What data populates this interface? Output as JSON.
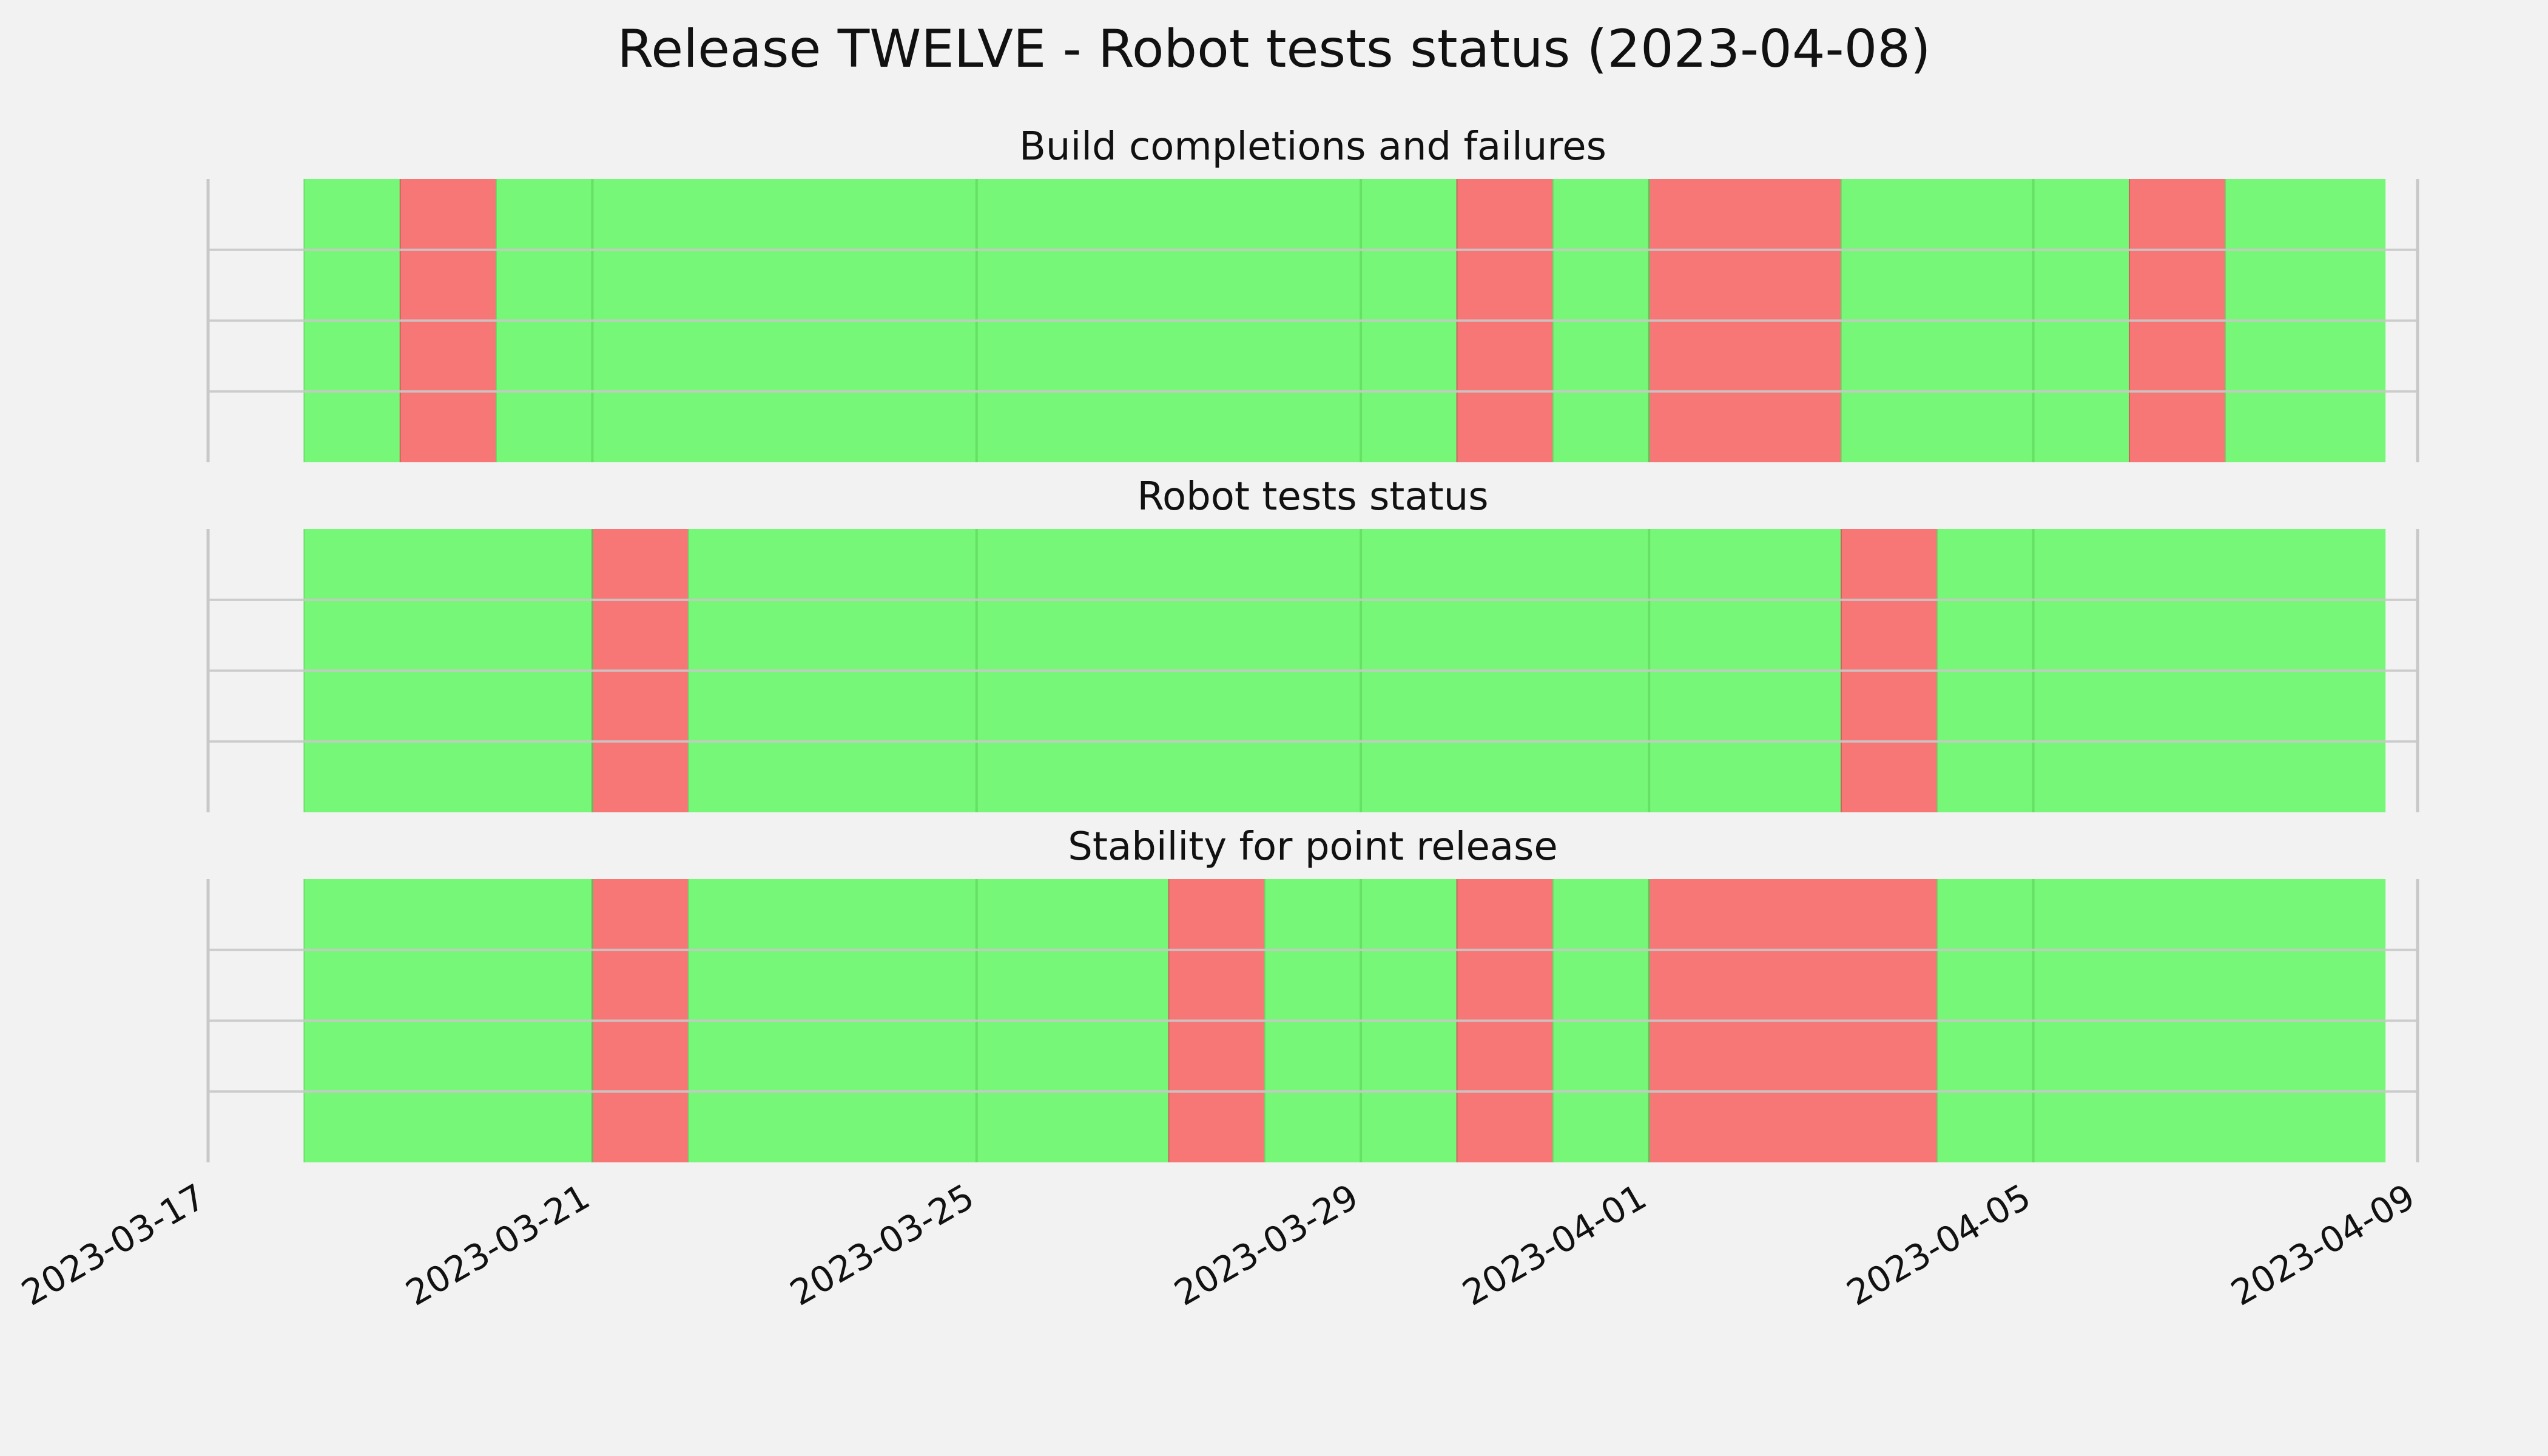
{
  "page": {
    "background": "#f2f2f2"
  },
  "chart_data": {
    "type": "timeline",
    "title": "Release TWELVE - Robot tests status (2023-04-08)",
    "colors": {
      "pass": "#77f777",
      "fail": "#f77777",
      "grid": "#c8c8c8",
      "band_grid": "#5ad45a"
    },
    "x_axis": {
      "range": [
        "2023-03-17",
        "2023-04-09"
      ],
      "ticks": [
        "2023-03-17",
        "2023-03-21",
        "2023-03-25",
        "2023-03-29",
        "2023-04-01",
        "2023-04-05",
        "2023-04-09"
      ]
    },
    "panels": [
      {
        "title": "Build completions and failures",
        "start": "2023-03-18",
        "end": "2023-04-08T16:00",
        "segments": [
          {
            "start": "2023-03-18",
            "end": "2023-03-19",
            "status": "pass"
          },
          {
            "start": "2023-03-19",
            "end": "2023-03-20",
            "status": "fail"
          },
          {
            "start": "2023-03-20",
            "end": "2023-03-30",
            "status": "pass"
          },
          {
            "start": "2023-03-30",
            "end": "2023-03-31",
            "status": "fail"
          },
          {
            "start": "2023-03-31",
            "end": "2023-04-01",
            "status": "pass"
          },
          {
            "start": "2023-04-01",
            "end": "2023-04-03",
            "status": "fail"
          },
          {
            "start": "2023-04-03",
            "end": "2023-04-06",
            "status": "pass"
          },
          {
            "start": "2023-04-06",
            "end": "2023-04-07",
            "status": "fail"
          },
          {
            "start": "2023-04-07",
            "end": "2023-04-08T16:00",
            "status": "pass"
          }
        ]
      },
      {
        "title": "Robot tests status",
        "start": "2023-03-18",
        "end": "2023-04-08T16:00",
        "segments": [
          {
            "start": "2023-03-18",
            "end": "2023-03-21",
            "status": "pass"
          },
          {
            "start": "2023-03-21",
            "end": "2023-03-22",
            "status": "fail"
          },
          {
            "start": "2023-03-22",
            "end": "2023-04-03",
            "status": "pass"
          },
          {
            "start": "2023-04-03",
            "end": "2023-04-04",
            "status": "fail"
          },
          {
            "start": "2023-04-04",
            "end": "2023-04-08T16:00",
            "status": "pass"
          }
        ]
      },
      {
        "title": "Stability for point release",
        "start": "2023-03-18",
        "end": "2023-04-08T16:00",
        "segments": [
          {
            "start": "2023-03-18",
            "end": "2023-03-21",
            "status": "pass"
          },
          {
            "start": "2023-03-21",
            "end": "2023-03-22",
            "status": "fail"
          },
          {
            "start": "2023-03-22",
            "end": "2023-03-27",
            "status": "pass"
          },
          {
            "start": "2023-03-27",
            "end": "2023-03-28",
            "status": "fail"
          },
          {
            "start": "2023-03-28",
            "end": "2023-03-30",
            "status": "pass"
          },
          {
            "start": "2023-03-30",
            "end": "2023-03-31",
            "status": "fail"
          },
          {
            "start": "2023-03-31",
            "end": "2023-04-01",
            "status": "pass"
          },
          {
            "start": "2023-04-01",
            "end": "2023-04-04",
            "status": "fail"
          },
          {
            "start": "2023-04-04",
            "end": "2023-04-08T16:00",
            "status": "pass"
          }
        ]
      }
    ]
  }
}
